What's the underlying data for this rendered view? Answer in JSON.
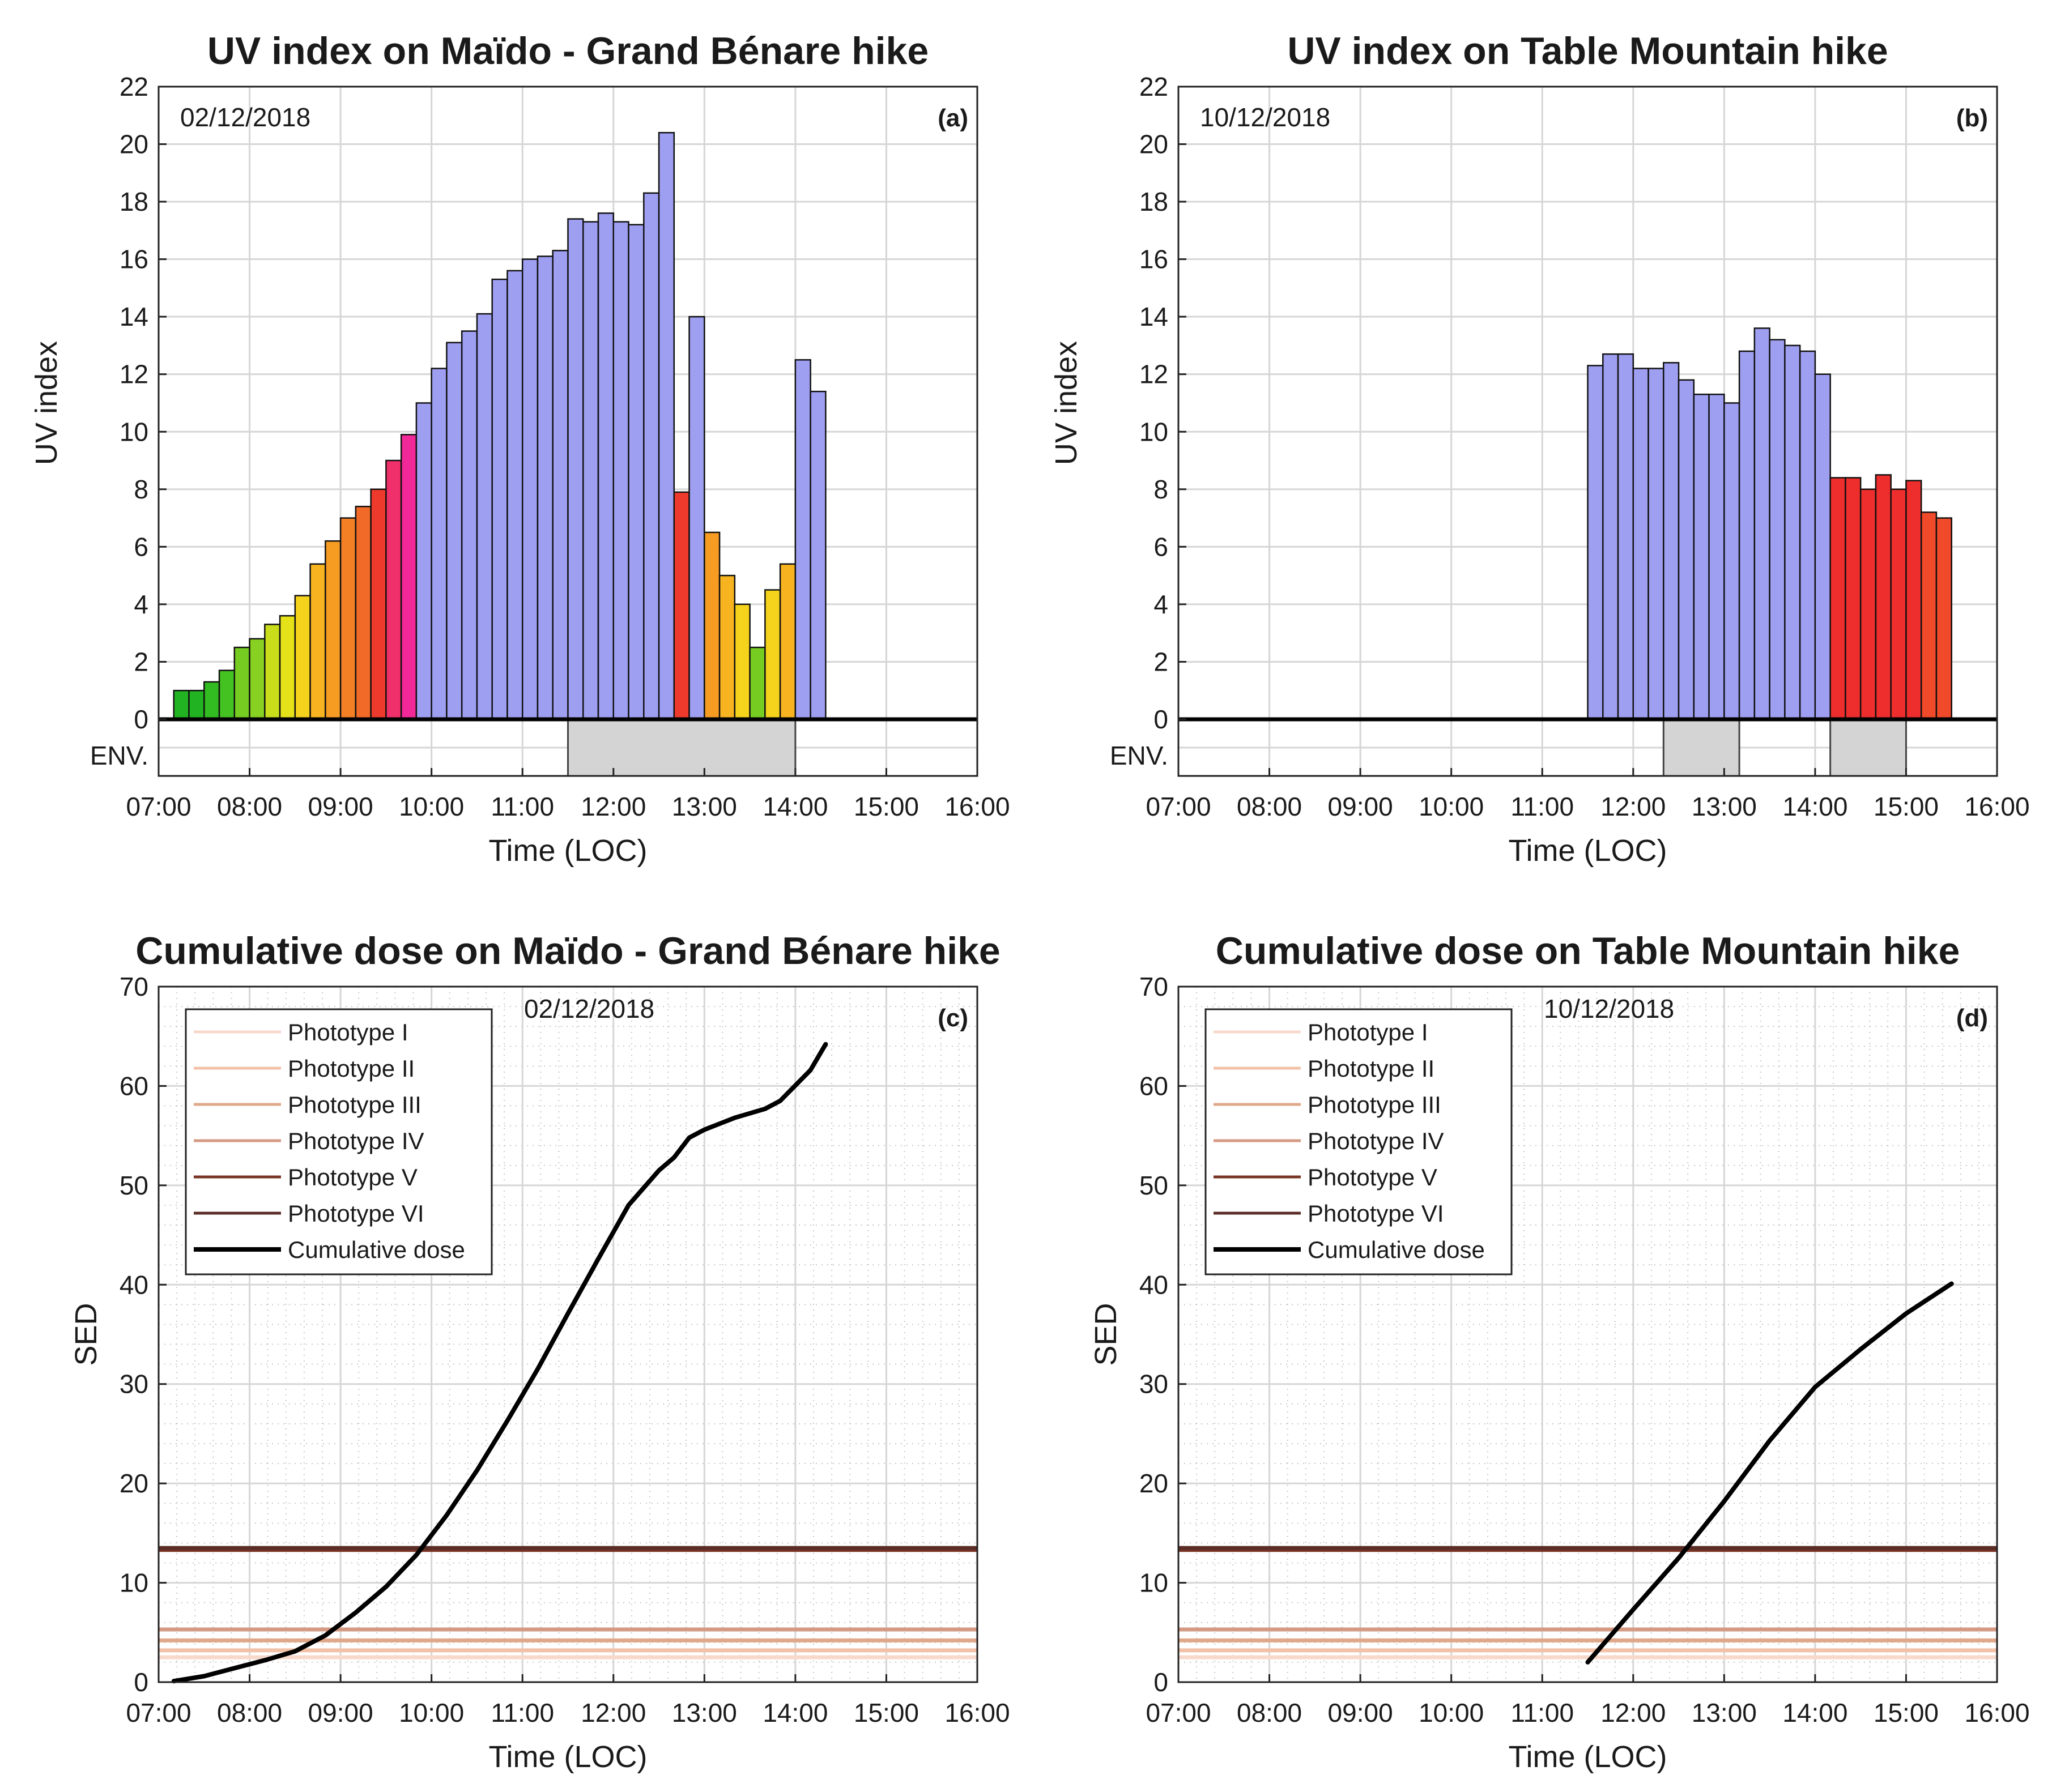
{
  "chart_data": [
    {
      "id": "a",
      "type": "bar",
      "title": "UV index on Maïdo - Grand Bénare hike",
      "date": "02/12/2018",
      "panel_label": "(a)",
      "xlabel": "Time (LOC)",
      "ylabel": "UV index",
      "x_ticks": [
        "07:00",
        "08:00",
        "09:00",
        "10:00",
        "11:00",
        "12:00",
        "13:00",
        "14:00",
        "15:00",
        "16:00"
      ],
      "y_ticks": [
        "0",
        "2",
        "4",
        "6",
        "8",
        "10",
        "12",
        "14",
        "16",
        "18",
        "20",
        "22"
      ],
      "ylim": [
        0,
        22
      ],
      "env_label": "ENV.",
      "bin_minutes": 10,
      "bars": [
        {
          "start": "07:10",
          "value": 1.0,
          "color": "#22b322"
        },
        {
          "start": "07:20",
          "value": 1.0,
          "color": "#22b322"
        },
        {
          "start": "07:30",
          "value": 1.3,
          "color": "#33bb22"
        },
        {
          "start": "07:40",
          "value": 1.7,
          "color": "#44c222"
        },
        {
          "start": "07:50",
          "value": 2.5,
          "color": "#77cc22"
        },
        {
          "start": "08:00",
          "value": 2.8,
          "color": "#88d022"
        },
        {
          "start": "08:10",
          "value": 3.3,
          "color": "#c9dd1a"
        },
        {
          "start": "08:20",
          "value": 3.6,
          "color": "#e6e21a"
        },
        {
          "start": "08:30",
          "value": 4.3,
          "color": "#f5d21c"
        },
        {
          "start": "08:40",
          "value": 5.4,
          "color": "#f7b420"
        },
        {
          "start": "08:50",
          "value": 6.2,
          "color": "#f69c22"
        },
        {
          "start": "09:00",
          "value": 7.0,
          "color": "#f48026"
        },
        {
          "start": "09:10",
          "value": 7.4,
          "color": "#f26a28"
        },
        {
          "start": "09:20",
          "value": 8.0,
          "color": "#ee3a2c"
        },
        {
          "start": "09:30",
          "value": 9.0,
          "color": "#f0306a"
        },
        {
          "start": "09:40",
          "value": 9.9,
          "color": "#f02898"
        },
        {
          "start": "09:50",
          "value": 11.0,
          "color": "#9f9ff2"
        },
        {
          "start": "10:00",
          "value": 12.2,
          "color": "#9f9ff2"
        },
        {
          "start": "10:10",
          "value": 13.1,
          "color": "#9f9ff2"
        },
        {
          "start": "10:20",
          "value": 13.5,
          "color": "#9f9ff2"
        },
        {
          "start": "10:30",
          "value": 14.1,
          "color": "#9f9ff2"
        },
        {
          "start": "10:40",
          "value": 15.3,
          "color": "#9f9ff2"
        },
        {
          "start": "10:50",
          "value": 15.6,
          "color": "#9f9ff2"
        },
        {
          "start": "11:00",
          "value": 16.0,
          "color": "#9f9ff2"
        },
        {
          "start": "11:10",
          "value": 16.1,
          "color": "#9f9ff2"
        },
        {
          "start": "11:20",
          "value": 16.3,
          "color": "#9f9ff2"
        },
        {
          "start": "11:30",
          "value": 17.4,
          "color": "#9f9ff2"
        },
        {
          "start": "11:40",
          "value": 17.3,
          "color": "#9f9ff2"
        },
        {
          "start": "11:50",
          "value": 17.6,
          "color": "#9f9ff2"
        },
        {
          "start": "12:00",
          "value": 17.3,
          "color": "#9f9ff2"
        },
        {
          "start": "12:10",
          "value": 17.2,
          "color": "#9f9ff2"
        },
        {
          "start": "12:20",
          "value": 18.3,
          "color": "#9f9ff2"
        },
        {
          "start": "12:30",
          "value": 20.4,
          "color": "#9f9ff2"
        },
        {
          "start": "12:40",
          "value": 7.9,
          "color": "#ee3a2c"
        },
        {
          "start": "12:50",
          "value": 14.0,
          "color": "#9f9ff2"
        },
        {
          "start": "13:00",
          "value": 6.5,
          "color": "#f69c22"
        },
        {
          "start": "13:10",
          "value": 5.0,
          "color": "#f7b420"
        },
        {
          "start": "13:20",
          "value": 4.0,
          "color": "#f5d21c"
        },
        {
          "start": "13:30",
          "value": 2.5,
          "color": "#77cc22"
        },
        {
          "start": "13:40",
          "value": 4.5,
          "color": "#f5d21c"
        },
        {
          "start": "13:50",
          "value": 5.4,
          "color": "#f7b420"
        },
        {
          "start": "14:00",
          "value": 12.5,
          "color": "#9f9ff2"
        },
        {
          "start": "14:10",
          "value": 11.4,
          "color": "#9f9ff2"
        }
      ],
      "env_periods": [
        [
          "11:30",
          "14:00"
        ]
      ]
    },
    {
      "id": "b",
      "type": "bar",
      "title": "UV index on Table Mountain hike",
      "date": "10/12/2018",
      "panel_label": "(b)",
      "xlabel": "Time (LOC)",
      "ylabel": "UV index",
      "x_ticks": [
        "07:00",
        "08:00",
        "09:00",
        "10:00",
        "11:00",
        "12:00",
        "13:00",
        "14:00",
        "15:00",
        "16:00"
      ],
      "y_ticks": [
        "0",
        "2",
        "4",
        "6",
        "8",
        "10",
        "12",
        "14",
        "16",
        "18",
        "20",
        "22"
      ],
      "ylim": [
        0,
        22
      ],
      "env_label": "ENV.",
      "bin_minutes": 10,
      "bars": [
        {
          "start": "11:30",
          "value": 12.3,
          "color": "#9f9ff2"
        },
        {
          "start": "11:40",
          "value": 12.7,
          "color": "#9f9ff2"
        },
        {
          "start": "11:50",
          "value": 12.7,
          "color": "#9f9ff2"
        },
        {
          "start": "12:00",
          "value": 12.2,
          "color": "#9f9ff2"
        },
        {
          "start": "12:10",
          "value": 12.2,
          "color": "#9f9ff2"
        },
        {
          "start": "12:20",
          "value": 12.4,
          "color": "#9f9ff2"
        },
        {
          "start": "12:30",
          "value": 11.8,
          "color": "#9f9ff2"
        },
        {
          "start": "12:40",
          "value": 11.3,
          "color": "#9f9ff2"
        },
        {
          "start": "12:50",
          "value": 11.3,
          "color": "#9f9ff2"
        },
        {
          "start": "13:00",
          "value": 11.0,
          "color": "#9f9ff2"
        },
        {
          "start": "13:10",
          "value": 12.8,
          "color": "#9f9ff2"
        },
        {
          "start": "13:20",
          "value": 13.6,
          "color": "#9f9ff2"
        },
        {
          "start": "13:30",
          "value": 13.2,
          "color": "#9f9ff2"
        },
        {
          "start": "13:40",
          "value": 13.0,
          "color": "#9f9ff2"
        },
        {
          "start": "13:50",
          "value": 12.8,
          "color": "#9f9ff2"
        },
        {
          "start": "14:00",
          "value": 12.0,
          "color": "#9f9ff2"
        },
        {
          "start": "14:10",
          "value": 8.4,
          "color": "#ee2e2c"
        },
        {
          "start": "14:20",
          "value": 8.4,
          "color": "#ee2e2c"
        },
        {
          "start": "14:30",
          "value": 8.0,
          "color": "#ee2e2c"
        },
        {
          "start": "14:40",
          "value": 8.5,
          "color": "#ee2e2c"
        },
        {
          "start": "14:50",
          "value": 8.0,
          "color": "#ee2e2c"
        },
        {
          "start": "15:00",
          "value": 8.3,
          "color": "#ee2e2c"
        },
        {
          "start": "15:10",
          "value": 7.2,
          "color": "#f04a2a"
        },
        {
          "start": "15:20",
          "value": 7.0,
          "color": "#f04a2a"
        }
      ],
      "env_periods": [
        [
          "12:20",
          "13:10"
        ],
        [
          "14:10",
          "15:00"
        ]
      ]
    },
    {
      "id": "c",
      "type": "line",
      "title": "Cumulative dose on Maïdo - Grand Bénare hike",
      "date": "02/12/2018",
      "panel_label": "(c)",
      "xlabel": "Time (LOC)",
      "ylabel": "SED",
      "x_ticks": [
        "07:00",
        "08:00",
        "09:00",
        "10:00",
        "11:00",
        "12:00",
        "13:00",
        "14:00",
        "15:00",
        "16:00"
      ],
      "y_ticks": [
        "0",
        "10",
        "20",
        "30",
        "40",
        "50",
        "60",
        "70"
      ],
      "ylim": [
        0,
        70
      ],
      "thresholds": [
        {
          "name": "Phototype I",
          "value": 2.5,
          "color": "#f7d9cc"
        },
        {
          "name": "Phototype II",
          "value": 3.2,
          "color": "#f2c2a8"
        },
        {
          "name": "Phototype III",
          "value": 4.2,
          "color": "#e0a88a"
        },
        {
          "name": "Phototype IV",
          "value": 5.3,
          "color": "#d49a84"
        },
        {
          "name": "Phototype V",
          "value": 13.3,
          "color": "#7a3425"
        },
        {
          "name": "Phototype VI",
          "value": 13.5,
          "color": "#5a2e26"
        }
      ],
      "series": [
        {
          "name": "Cumulative dose",
          "color": "#000000",
          "points": [
            [
              "07:10",
              0.1
            ],
            [
              "07:30",
              0.6
            ],
            [
              "07:50",
              1.4
            ],
            [
              "08:10",
              2.2
            ],
            [
              "08:30",
              3.1
            ],
            [
              "08:50",
              4.7
            ],
            [
              "09:10",
              7.0
            ],
            [
              "09:30",
              9.6
            ],
            [
              "09:50",
              12.8
            ],
            [
              "10:10",
              16.8
            ],
            [
              "10:30",
              21.3
            ],
            [
              "10:50",
              26.3
            ],
            [
              "11:10",
              31.5
            ],
            [
              "11:30",
              37.1
            ],
            [
              "11:50",
              42.6
            ],
            [
              "12:10",
              48.0
            ],
            [
              "12:30",
              51.5
            ],
            [
              "12:40",
              52.8
            ],
            [
              "12:50",
              54.8
            ],
            [
              "13:00",
              55.6
            ],
            [
              "13:20",
              56.8
            ],
            [
              "13:40",
              57.7
            ],
            [
              "13:50",
              58.5
            ],
            [
              "14:10",
              61.6
            ],
            [
              "14:20",
              64.2
            ]
          ]
        }
      ]
    },
    {
      "id": "d",
      "type": "line",
      "title": "Cumulative dose on Table Mountain hike",
      "date": "10/12/2018",
      "panel_label": "(d)",
      "xlabel": "Time (LOC)",
      "ylabel": "SED",
      "x_ticks": [
        "07:00",
        "08:00",
        "09:00",
        "10:00",
        "11:00",
        "12:00",
        "13:00",
        "14:00",
        "15:00",
        "16:00"
      ],
      "y_ticks": [
        "0",
        "10",
        "20",
        "30",
        "40",
        "50",
        "60",
        "70"
      ],
      "ylim": [
        0,
        70
      ],
      "thresholds": [
        {
          "name": "Phototype I",
          "value": 2.5,
          "color": "#f7d9cc"
        },
        {
          "name": "Phototype II",
          "value": 3.2,
          "color": "#f2c2a8"
        },
        {
          "name": "Phototype III",
          "value": 4.2,
          "color": "#e0a88a"
        },
        {
          "name": "Phototype IV",
          "value": 5.3,
          "color": "#d49a84"
        },
        {
          "name": "Phototype V",
          "value": 13.3,
          "color": "#7a3425"
        },
        {
          "name": "Phototype VI",
          "value": 13.5,
          "color": "#5a2e26"
        }
      ],
      "series": [
        {
          "name": "Cumulative dose",
          "color": "#000000",
          "points": [
            [
              "11:30",
              2.0
            ],
            [
              "12:00",
              7.3
            ],
            [
              "12:30",
              12.5
            ],
            [
              "13:00",
              18.2
            ],
            [
              "13:30",
              24.3
            ],
            [
              "14:00",
              29.7
            ],
            [
              "14:30",
              33.5
            ],
            [
              "15:00",
              37.1
            ],
            [
              "15:30",
              40.1
            ]
          ]
        }
      ]
    }
  ]
}
